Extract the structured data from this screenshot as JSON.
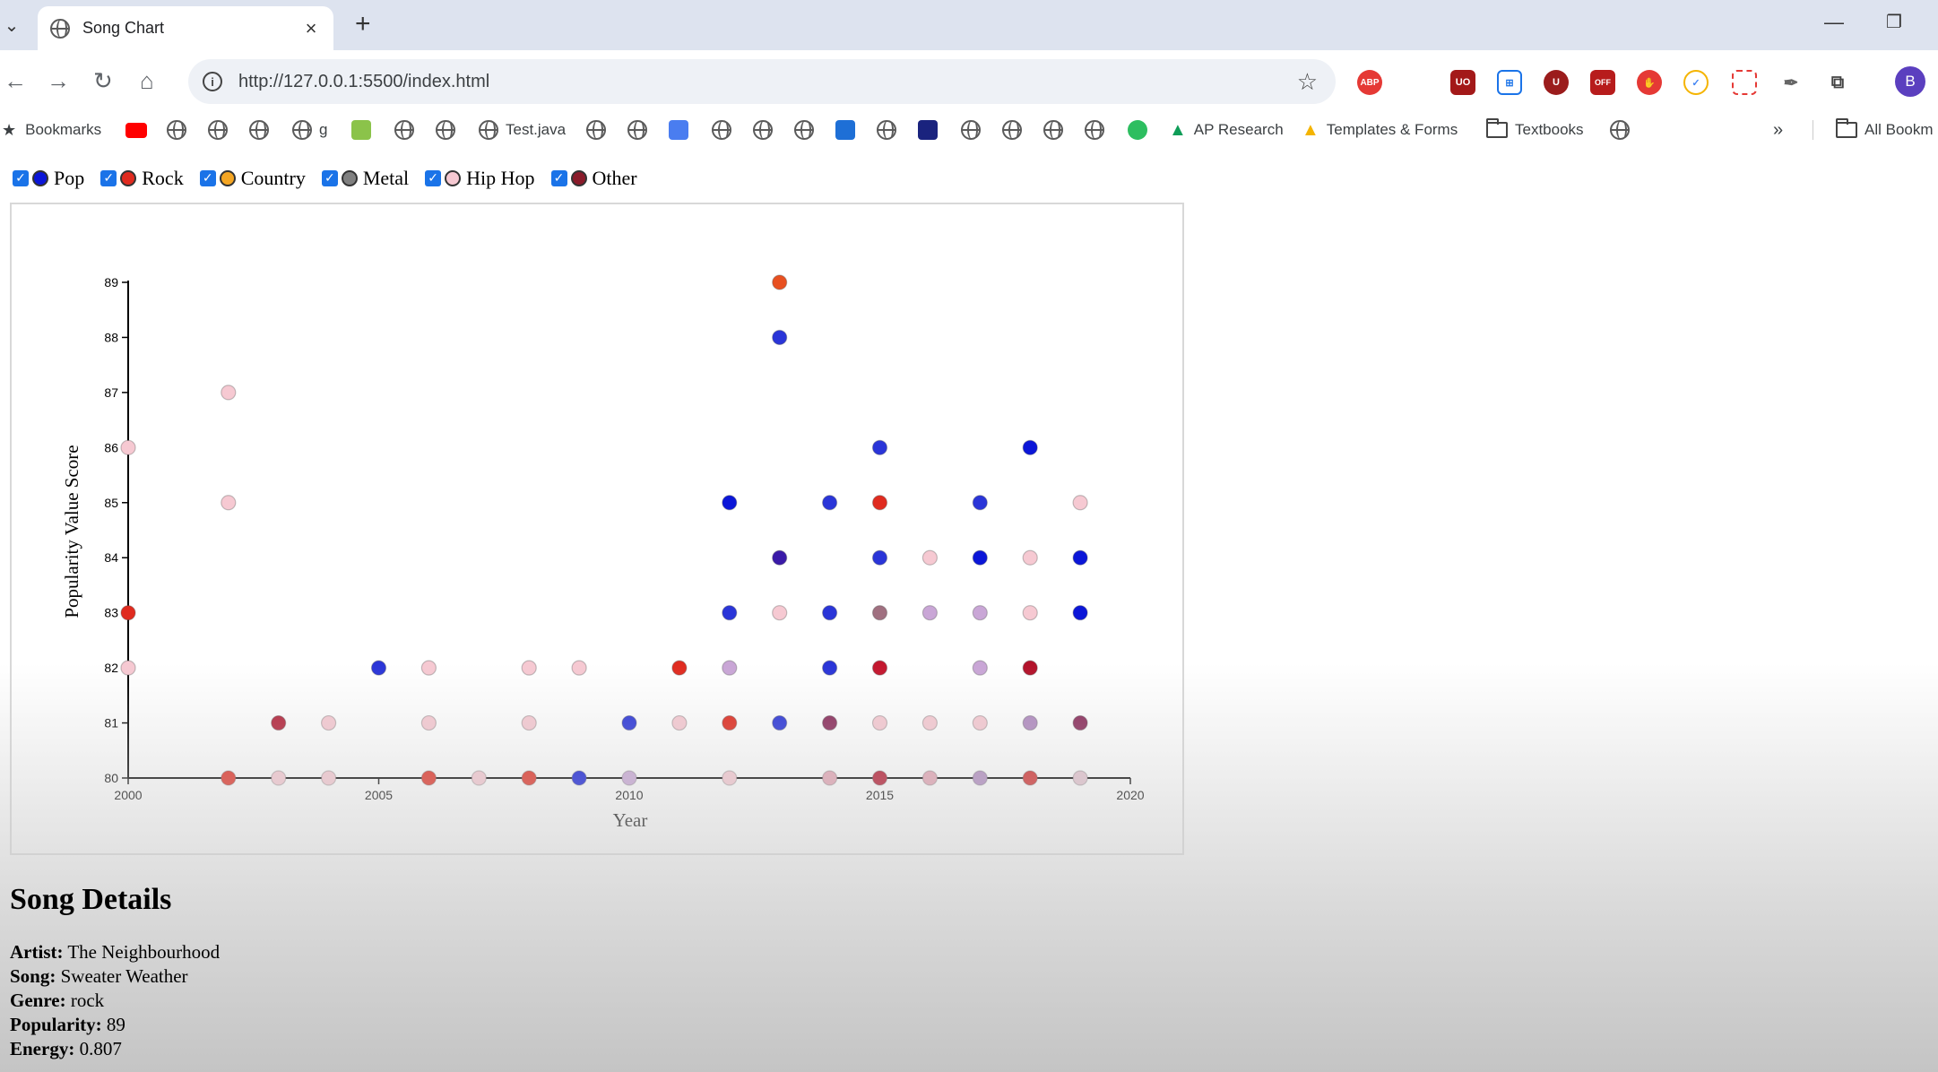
{
  "browser": {
    "tab_title": "Song Chart",
    "url": "http://127.0.0.1:5500/index.html",
    "profile_initial": "B",
    "bookmarks": [
      {
        "label": "Bookmarks",
        "icon": "star-icon"
      },
      {
        "label": "g",
        "icon": "globe-icon"
      },
      {
        "label": "Test.java",
        "icon": "globe-icon"
      },
      {
        "label": "AP Research",
        "icon": "drive-icon"
      },
      {
        "label": "Templates & Forms",
        "icon": "drive-icon"
      },
      {
        "label": "Textbooks",
        "icon": "folder-icon"
      },
      {
        "label": "All Bookm",
        "icon": "folder-icon"
      }
    ],
    "extensions": [
      "ABP",
      "UO",
      "U",
      "OFF"
    ]
  },
  "legend": [
    {
      "label": "Pop",
      "color": "#0b16d8",
      "checked": true
    },
    {
      "label": "Rock",
      "color": "#e02b1f",
      "checked": true
    },
    {
      "label": "Country",
      "color": "#f5a623",
      "checked": true
    },
    {
      "label": "Metal",
      "color": "#808080",
      "checked": true
    },
    {
      "label": "Hip Hop",
      "color": "#f6c9d2",
      "checked": true
    },
    {
      "label": "Other",
      "color": "#8a1b2a",
      "checked": true
    }
  ],
  "chart_data": {
    "type": "scatter",
    "xlabel": "Year",
    "ylabel": "Popularity Value Score",
    "xlim": [
      2000,
      2020
    ],
    "ylim": [
      80,
      89
    ],
    "xticks": [
      2000,
      2005,
      2010,
      2015,
      2020
    ],
    "yticks": [
      80,
      81,
      82,
      83,
      84,
      85,
      86,
      87,
      88,
      89
    ],
    "points": [
      {
        "x": 2000,
        "y": 86,
        "c": "#f6c9d2"
      },
      {
        "x": 2000,
        "y": 83,
        "c": "#e02b1f"
      },
      {
        "x": 2000,
        "y": 82,
        "c": "#f6c9d2"
      },
      {
        "x": 2002,
        "y": 87,
        "c": "#f6c9d2"
      },
      {
        "x": 2002,
        "y": 85,
        "c": "#f6c9d2"
      },
      {
        "x": 2002,
        "y": 80,
        "c": "#e02b1f"
      },
      {
        "x": 2003,
        "y": 81,
        "c": "#b3233a"
      },
      {
        "x": 2003,
        "y": 80,
        "c": "#f6c9d2"
      },
      {
        "x": 2004,
        "y": 81,
        "c": "#f6c9d2"
      },
      {
        "x": 2004,
        "y": 80,
        "c": "#f6c9d2"
      },
      {
        "x": 2005,
        "y": 82,
        "c": "#2a35d8"
      },
      {
        "x": 2006,
        "y": 82,
        "c": "#f6c9d2"
      },
      {
        "x": 2006,
        "y": 81,
        "c": "#f6c9d2"
      },
      {
        "x": 2006,
        "y": 80,
        "c": "#e02b1f"
      },
      {
        "x": 2007,
        "y": 80,
        "c": "#f6c9d2"
      },
      {
        "x": 2008,
        "y": 82,
        "c": "#f6c9d2"
      },
      {
        "x": 2008,
        "y": 81,
        "c": "#f6c9d2"
      },
      {
        "x": 2008,
        "y": 80,
        "c": "#e02b1f"
      },
      {
        "x": 2009,
        "y": 82,
        "c": "#f6c9d2"
      },
      {
        "x": 2009,
        "y": 80,
        "c": "#0b16d8"
      },
      {
        "x": 2010,
        "y": 81,
        "c": "#2a35d8"
      },
      {
        "x": 2010,
        "y": 80,
        "c": "#c9a6d6"
      },
      {
        "x": 2011,
        "y": 82,
        "c": "#e02b1f"
      },
      {
        "x": 2011,
        "y": 81,
        "c": "#f6c9d2"
      },
      {
        "x": 2012,
        "y": 85,
        "c": "#0b16d8"
      },
      {
        "x": 2012,
        "y": 83,
        "c": "#2a35d8"
      },
      {
        "x": 2012,
        "y": 82,
        "c": "#c9a6d6"
      },
      {
        "x": 2012,
        "y": 81,
        "c": "#e02b1f"
      },
      {
        "x": 2012,
        "y": 80,
        "c": "#f6c9d2"
      },
      {
        "x": 2013,
        "y": 89,
        "c": "#e85020"
      },
      {
        "x": 2013,
        "y": 88,
        "c": "#2a35d8"
      },
      {
        "x": 2013,
        "y": 84,
        "c": "#3a1aa8"
      },
      {
        "x": 2013,
        "y": 83,
        "c": "#f6c9d2"
      },
      {
        "x": 2013,
        "y": 81,
        "c": "#2a35d8"
      },
      {
        "x": 2014,
        "y": 85,
        "c": "#2a35d8"
      },
      {
        "x": 2014,
        "y": 83,
        "c": "#2a35d8"
      },
      {
        "x": 2014,
        "y": 82,
        "c": "#2a35d8"
      },
      {
        "x": 2014,
        "y": 81,
        "c": "#8a2b5a"
      },
      {
        "x": 2014,
        "y": 80,
        "c": "#e3a3b3"
      },
      {
        "x": 2015,
        "y": 86,
        "c": "#2a35d8"
      },
      {
        "x": 2015,
        "y": 85,
        "c": "#e02b1f"
      },
      {
        "x": 2015,
        "y": 84,
        "c": "#2a35d8"
      },
      {
        "x": 2015,
        "y": 83,
        "c": "#a07080"
      },
      {
        "x": 2015,
        "y": 82,
        "c": "#c4162e"
      },
      {
        "x": 2015,
        "y": 81,
        "c": "#f6c9d2"
      },
      {
        "x": 2015,
        "y": 80,
        "c": "#b3122a"
      },
      {
        "x": 2016,
        "y": 84,
        "c": "#f6c9d2"
      },
      {
        "x": 2016,
        "y": 83,
        "c": "#c9a6d6"
      },
      {
        "x": 2016,
        "y": 81,
        "c": "#f6c9d2"
      },
      {
        "x": 2016,
        "y": 80,
        "c": "#e3a3b3"
      },
      {
        "x": 2017,
        "y": 85,
        "c": "#2a35d8"
      },
      {
        "x": 2017,
        "y": 84,
        "c": "#0b16d8"
      },
      {
        "x": 2017,
        "y": 83,
        "c": "#c9a6d6"
      },
      {
        "x": 2017,
        "y": 82,
        "c": "#c9a6d6"
      },
      {
        "x": 2017,
        "y": 81,
        "c": "#f6c9d2"
      },
      {
        "x": 2017,
        "y": 80,
        "c": "#b08ac0"
      },
      {
        "x": 2018,
        "y": 86,
        "c": "#0b16d8"
      },
      {
        "x": 2018,
        "y": 84,
        "c": "#f6c9d2"
      },
      {
        "x": 2018,
        "y": 83,
        "c": "#f6c9d2"
      },
      {
        "x": 2018,
        "y": 82,
        "c": "#b3122a"
      },
      {
        "x": 2018,
        "y": 81,
        "c": "#b08ac0"
      },
      {
        "x": 2018,
        "y": 80,
        "c": "#d02a2a"
      },
      {
        "x": 2019,
        "y": 85,
        "c": "#f6c9d2"
      },
      {
        "x": 2019,
        "y": 84,
        "c": "#0b16d8"
      },
      {
        "x": 2019,
        "y": 83,
        "c": "#0b16d8"
      },
      {
        "x": 2019,
        "y": 81,
        "c": "#8a2b5a"
      },
      {
        "x": 2019,
        "y": 80,
        "c": "#e3c3cf"
      }
    ]
  },
  "details": {
    "heading": "Song Details",
    "artist_label": "Artist:",
    "artist": "The Neighbourhood",
    "song_label": "Song:",
    "song": "Sweater Weather",
    "genre_label": "Genre:",
    "genre": "rock",
    "popularity_label": "Popularity:",
    "popularity": "89",
    "energy_label": "Energy:",
    "energy": "0.807"
  }
}
